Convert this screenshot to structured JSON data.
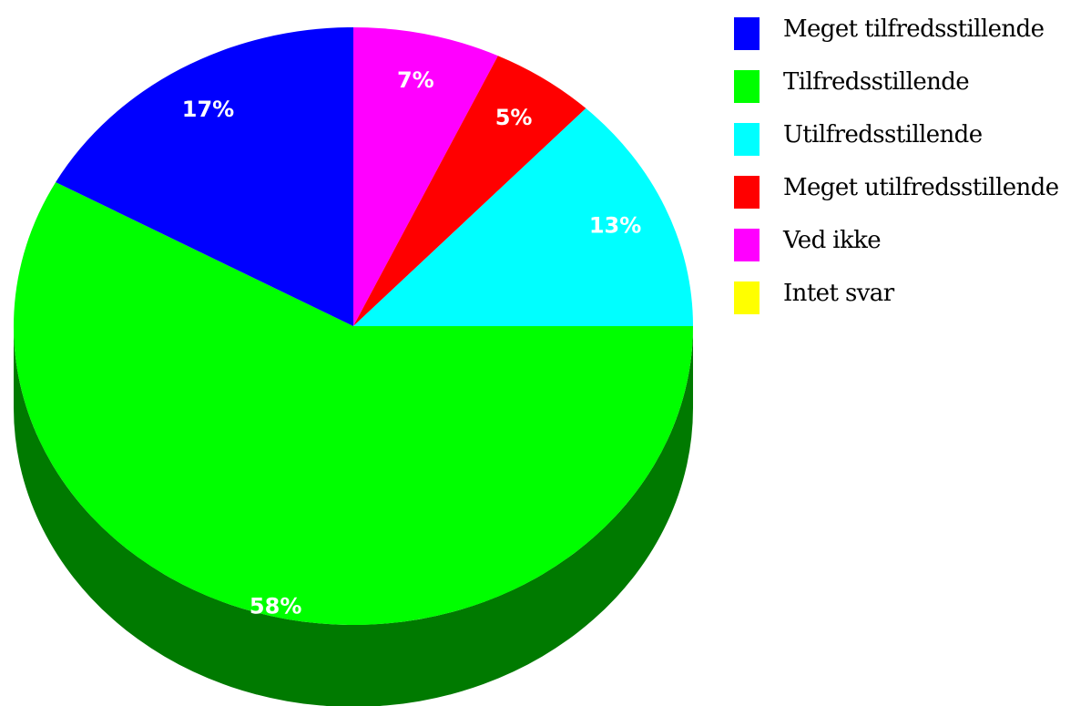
{
  "chart_data": {
    "type": "pie",
    "title": "",
    "style": "3d",
    "start_angle_deg": 0,
    "direction": "clockwise",
    "legend_position": "right",
    "slices": [
      {
        "name": "Ved ikke",
        "label": "7%",
        "value": 7,
        "color": "#ff00ff",
        "side_color": "#800080"
      },
      {
        "name": "Meget utilfredsstillende",
        "label": "5%",
        "value": 5,
        "color": "#ff0000",
        "side_color": "#800000"
      },
      {
        "name": "Utilfredsstillende",
        "label": "13%",
        "value": 13,
        "color": "#00ffff",
        "side_color": "#008080"
      },
      {
        "name": "Tilfredsstillende",
        "label": "58%",
        "value": 58,
        "color": "#00ff00",
        "side_color": "#007a00"
      },
      {
        "name": "Meget tilfredsstillende",
        "label": "17%",
        "value": 17,
        "color": "#0000ff",
        "side_color": "#000080"
      },
      {
        "name": "Intet svar",
        "label": "",
        "value": 0,
        "color": "#ffff00",
        "side_color": "#808000"
      }
    ],
    "legend": [
      {
        "name": "Meget tilfredsstillende",
        "color": "#0000ff"
      },
      {
        "name": "Tilfredsstillende",
        "color": "#00ff00"
      },
      {
        "name": "Utilfredsstillende",
        "color": "#00ffff"
      },
      {
        "name": "Meget utilfredsstillende",
        "color": "#ff0000"
      },
      {
        "name": "Ved ikke",
        "color": "#ff00ff"
      },
      {
        "name": "Intet svar",
        "color": "#ffff00"
      }
    ]
  }
}
